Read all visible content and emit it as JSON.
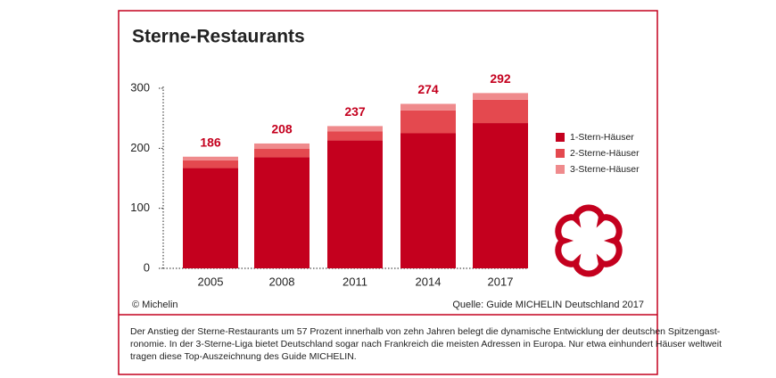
{
  "chart_data": {
    "type": "stacked-bar",
    "title": "Sterne-Restaurants",
    "categories": [
      "2005",
      "2008",
      "2011",
      "2014",
      "2017"
    ],
    "series": [
      {
        "name": "1-Stern-Häuser",
        "color": "#c4001e",
        "values": [
          167,
          185,
          213,
          225,
          242
        ]
      },
      {
        "name": "2-Sterne-Häuser",
        "color": "#e4494f",
        "values": [
          13,
          14,
          15,
          38,
          39
        ]
      },
      {
        "name": "3-Sterne-Häuser",
        "color": "#ef8a8c",
        "values": [
          6,
          9,
          9,
          11,
          11
        ]
      }
    ],
    "totals": [
      186,
      208,
      237,
      274,
      292
    ],
    "ylim": [
      0,
      300
    ],
    "yticks": [
      0,
      100,
      200,
      300
    ],
    "copyright": "© Michelin",
    "source": "Quelle: Guide MICHELIN Deutschland 2017",
    "caption": [
      "Der Anstieg der Sterne-Restaurants um 57 Prozent innerhalb von zehn Jahren belegt die dynamische Entwicklung der deutschen Spitzengast-",
      "ronomie. In der 3-Sterne-Liga bietet Deutschland sogar nach Frankreich die meisten Adressen in Europa. Nur etwa einhundert Häuser weltweit",
      "tragen diese Top-Auszeichnung des Guide MICHELIN."
    ]
  }
}
